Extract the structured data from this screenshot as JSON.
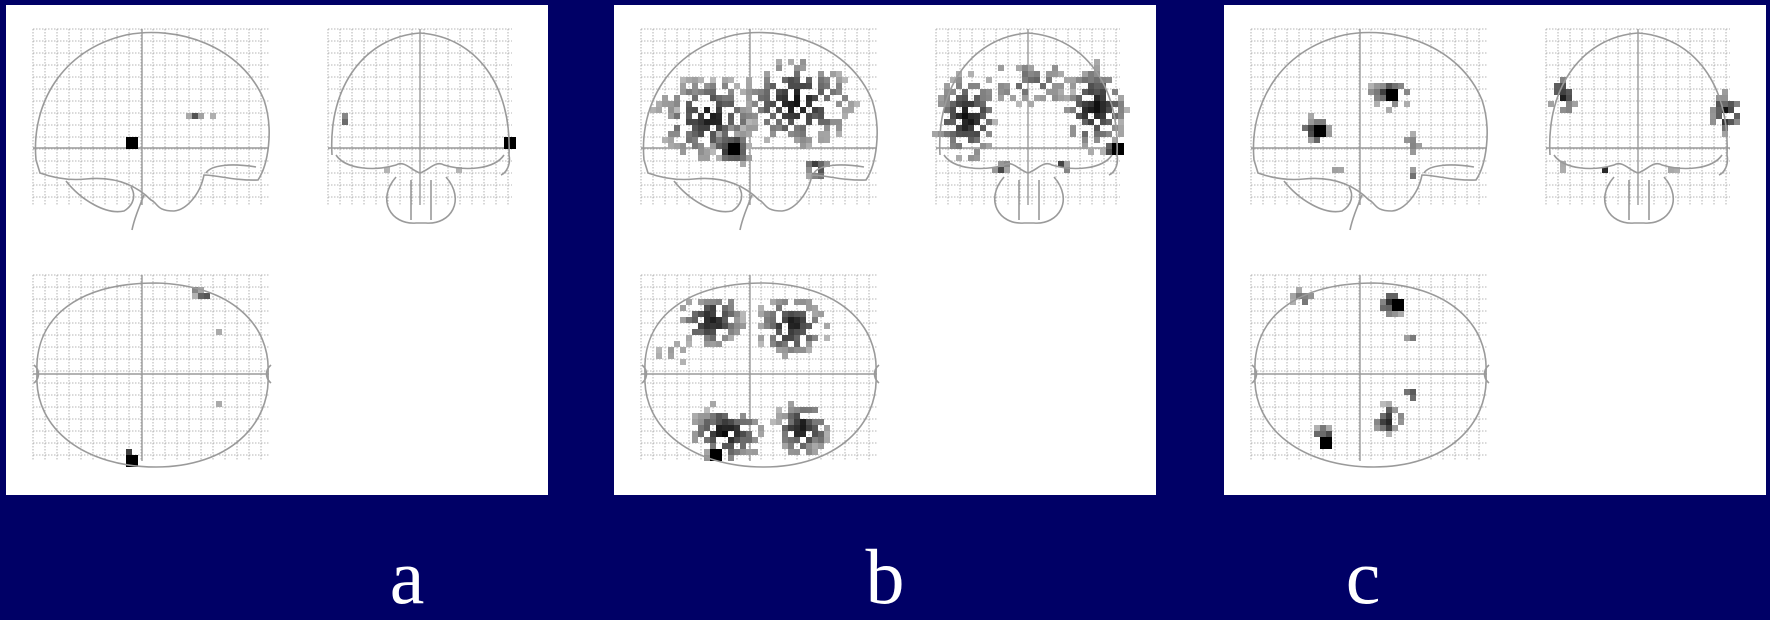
{
  "background_color": "#000066",
  "panel_color": "#ffffff",
  "outline_color": "#9a9a9a",
  "grid_color": "#9f9f9f",
  "blob_color": "#000000",
  "figures": [
    {
      "id": "a",
      "label": "a"
    },
    {
      "id": "b",
      "label": "b"
    },
    {
      "id": "c",
      "label": "c"
    }
  ]
}
